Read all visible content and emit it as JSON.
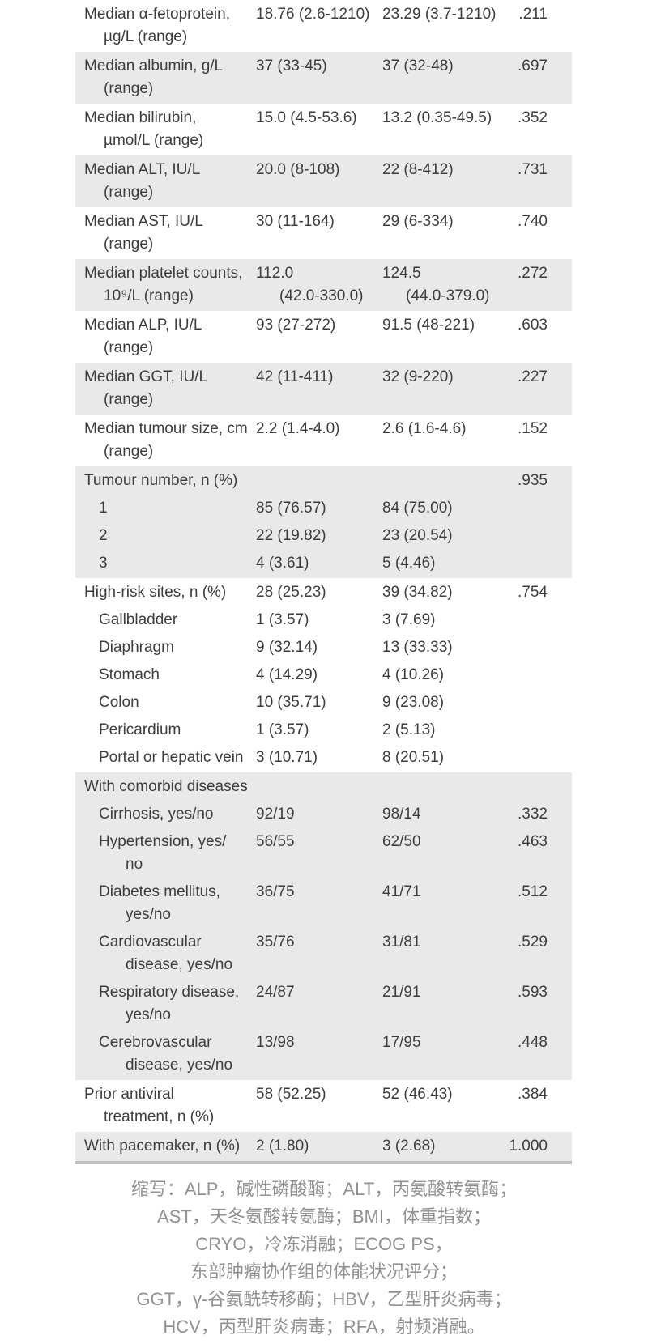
{
  "table": {
    "bands": [
      {
        "bg": "white",
        "entries": [
          {
            "label": "Median α-fetoprotein,\nµg/L (range)",
            "v1": "18.76 (2.6-1210)",
            "v2": "23.29 (3.7-1210)",
            "p": ".211"
          }
        ]
      },
      {
        "bg": "gray",
        "entries": [
          {
            "label": "Median albumin, g/L\n(range)",
            "v1": "37 (33-45)",
            "v2": "37 (32-48)",
            "p": ".697"
          }
        ]
      },
      {
        "bg": "white",
        "entries": [
          {
            "label": "Median bilirubin,\nµmol/L (range)",
            "v1": "15.0 (4.5-53.6)",
            "v2": "13.2 (0.35-49.5)",
            "p": ".352"
          }
        ]
      },
      {
        "bg": "gray",
        "entries": [
          {
            "label": "Median ALT, IU/L\n(range)",
            "v1": "20.0 (8-108)",
            "v2": "22 (8-412)",
            "p": ".731"
          }
        ]
      },
      {
        "bg": "white",
        "entries": [
          {
            "label": "Median AST, IU/L\n(range)",
            "v1": "30 (11-164)",
            "v2": "29 (6-334)",
            "p": ".740"
          }
        ]
      },
      {
        "bg": "gray",
        "entries": [
          {
            "label": "Median platelet counts,\n10⁹/L (range)",
            "v1": "112.0\n(42.0-330.0)",
            "v2": "124.5\n(44.0-379.0)",
            "p": ".272"
          }
        ]
      },
      {
        "bg": "white",
        "entries": [
          {
            "label": "Median ALP, IU/L\n(range)",
            "v1": "93 (27-272)",
            "v2": "91.5 (48-221)",
            "p": ".603"
          }
        ]
      },
      {
        "bg": "gray",
        "entries": [
          {
            "label": "Median GGT, IU/L\n(range)",
            "v1": "42 (11-411)",
            "v2": "32 (9-220)",
            "p": ".227"
          }
        ]
      },
      {
        "bg": "white",
        "entries": [
          {
            "label": "Median tumour size, cm\n(range)",
            "v1": "2.2 (1.4-4.0)",
            "v2": "2.6 (1.6-4.6)",
            "p": ".152"
          }
        ]
      },
      {
        "bg": "gray",
        "entries": [
          {
            "label": "Tumour number, n (%)",
            "p": ".935"
          },
          {
            "label": "1",
            "sub": true,
            "v1": "85 (76.57)",
            "v2": "84 (75.00)"
          },
          {
            "label": "2",
            "sub": true,
            "v1": "22 (19.82)",
            "v2": "23 (20.54)"
          },
          {
            "label": "3",
            "sub": true,
            "v1": "4 (3.61)",
            "v2": "5 (4.46)"
          }
        ]
      },
      {
        "bg": "white",
        "entries": [
          {
            "label": "High-risk sites, n (%)",
            "v1": "28 (25.23)",
            "v2": "39 (34.82)",
            "p": ".754"
          },
          {
            "label": "Gallbladder",
            "sub": true,
            "v1": "1 (3.57)",
            "v2": "3 (7.69)"
          },
          {
            "label": "Diaphragm",
            "sub": true,
            "v1": "9 (32.14)",
            "v2": "13 (33.33)"
          },
          {
            "label": "Stomach",
            "sub": true,
            "v1": "4 (14.29)",
            "v2": "4 (10.26)"
          },
          {
            "label": "Colon",
            "sub": true,
            "v1": "10 (35.71)",
            "v2": "9 (23.08)"
          },
          {
            "label": "Pericardium",
            "sub": true,
            "v1": "1 (3.57)",
            "v2": "2 (5.13)"
          },
          {
            "label": "Portal or hepatic vein",
            "sub": true,
            "v1": "3 (10.71)",
            "v2": "8 (20.51)"
          }
        ]
      },
      {
        "bg": "gray",
        "entries": [
          {
            "label": "With comorbid diseases"
          },
          {
            "label": "Cirrhosis, yes/no",
            "sub": true,
            "v1": "92/19",
            "v2": "98/14",
            "p": ".332"
          },
          {
            "label": "Hypertension, yes/\nno",
            "sub": true,
            "v1": "56/55",
            "v2": "62/50",
            "p": ".463"
          },
          {
            "label": "Diabetes mellitus,\nyes/no",
            "sub": true,
            "v1": "36/75",
            "v2": "41/71",
            "p": ".512"
          },
          {
            "label": "Cardiovascular\ndisease, yes/no",
            "sub": true,
            "v1": "35/76",
            "v2": "31/81",
            "p": ".529"
          },
          {
            "label": "Respiratory disease,\nyes/no",
            "sub": true,
            "v1": "24/87",
            "v2": "21/91",
            "p": ".593"
          },
          {
            "label": "Cerebrovascular\ndisease, yes/no",
            "sub": true,
            "v1": "13/98",
            "v2": "17/95",
            "p": ".448"
          }
        ]
      },
      {
        "bg": "white",
        "entries": [
          {
            "label": "Prior antiviral\ntreatment, n (%)",
            "v1": "58 (52.25)",
            "v2": "52 (46.43)",
            "p": ".384"
          }
        ]
      },
      {
        "bg": "gray",
        "entries": [
          {
            "label": "With pacemaker, n (%)",
            "v1": "2 (1.80)",
            "v2": "3 (2.68)",
            "p": "1.000"
          }
        ]
      }
    ]
  },
  "footnote": "缩写：ALP，碱性磷酸酶；ALT，丙氨酸转氨酶；\nAST，天冬氨酸转氨酶；BMI，体重指数；\nCRYO，冷冻消融；ECOG PS，\n东部肿瘤协作组的体能状况评分；\nGGT，γ-谷氨酰转移酶；HBV，乙型肝炎病毒；\nHCV，丙型肝炎病毒；RFA，射频消融。",
  "colors": {
    "zebra_gray": "#e9e9e9",
    "table_bottom_border": "#bfbfbf",
    "table_text": "#3d3d3d",
    "footnote_text": "#919191"
  }
}
